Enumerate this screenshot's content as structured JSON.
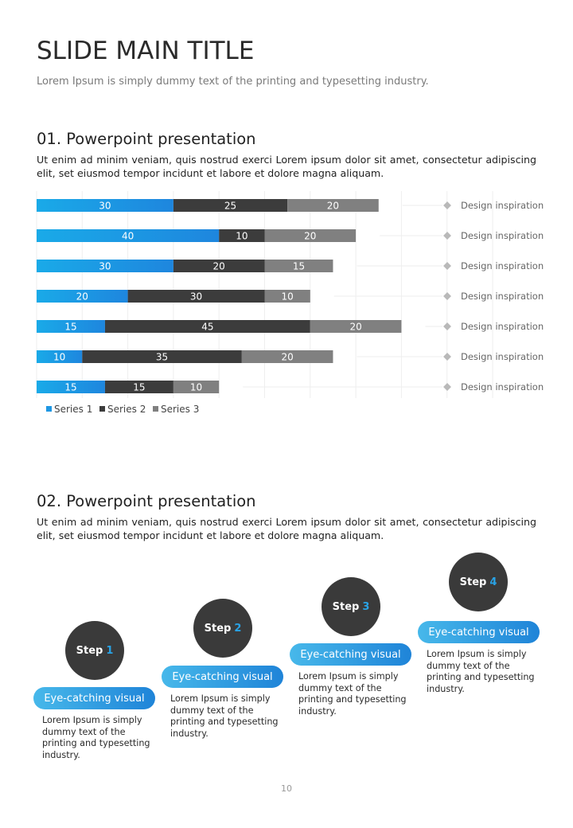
{
  "header": {
    "title": "SLIDE MAIN TITLE",
    "subtitle": "Lorem Ipsum is simply dummy text of the printing and typesetting industry."
  },
  "section1": {
    "title": "01. Powerpoint presentation",
    "body": "Ut enim ad minim veniam, quis nostrud exerci  Lorem ipsum dolor sit amet, consectetur adipiscing elit, set eiusmod tempor incidunt et labore et dolore magna aliquam."
  },
  "chart_data": {
    "type": "bar",
    "orientation": "horizontal",
    "stacked": true,
    "categories": [
      "Design inspiration",
      "Design inspiration",
      "Design inspiration",
      "Design inspiration",
      "Design inspiration",
      "Design inspiration",
      "Design inspiration"
    ],
    "series": [
      {
        "name": "Series 1",
        "values": [
          30,
          40,
          30,
          20,
          15,
          10,
          15
        ],
        "color": "#1f97e3"
      },
      {
        "name": "Series 2",
        "values": [
          25,
          10,
          20,
          30,
          45,
          35,
          15
        ],
        "color": "#3c3c3c"
      },
      {
        "name": "Series 3",
        "values": [
          20,
          20,
          15,
          10,
          20,
          20,
          10
        ],
        "color": "#808080"
      }
    ],
    "xlim": [
      0,
      100
    ],
    "grid": true,
    "data_labels": true,
    "legend": "bottom-left",
    "title": "",
    "xlabel": "",
    "ylabel": ""
  },
  "section2": {
    "title": "02. Powerpoint presentation",
    "body": "Ut enim ad minim veniam, quis nostrud exerci  Lorem ipsum dolor sit amet, consectetur adipiscing elit, set eiusmod tempor incidunt et labore et dolore magna aliquam."
  },
  "steps": [
    {
      "label": "Step",
      "number": "1",
      "pill": "Eye-catching visual",
      "text": "Lorem Ipsum is simply dummy text of the printing and typesetting industry."
    },
    {
      "label": "Step",
      "number": "2",
      "pill": "Eye-catching visual",
      "text": "Lorem Ipsum is simply dummy text of the printing and typesetting industry."
    },
    {
      "label": "Step",
      "number": "3",
      "pill": "Eye-catching visual",
      "text": "Lorem Ipsum is simply dummy text of the printing and typesetting industry."
    },
    {
      "label": "Step",
      "number": "4",
      "pill": "Eye-catching visual",
      "text": "Lorem Ipsum is simply dummy text of the printing and typesetting industry."
    }
  ],
  "footer": {
    "page_number": "10"
  }
}
